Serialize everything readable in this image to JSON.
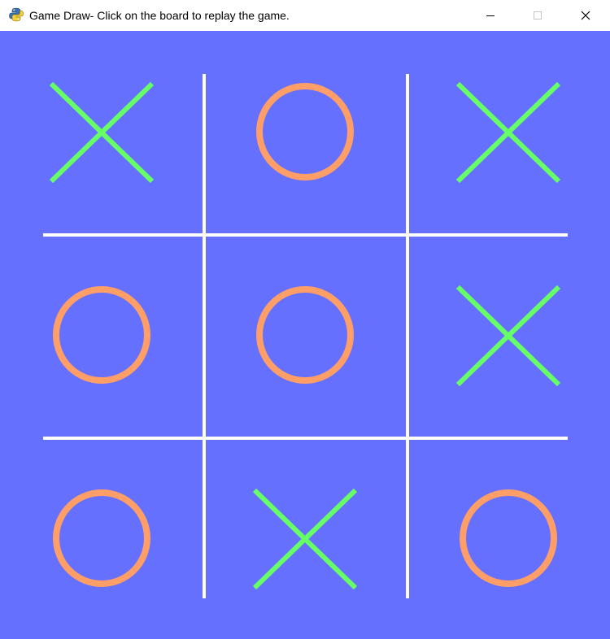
{
  "window": {
    "title": "Game Draw- Click on the board to replay the game.",
    "app_icon": "python-snake-icon"
  },
  "title_bar_buttons": [
    {
      "name": "minimize",
      "icon": "minimize-icon",
      "enabled": true
    },
    {
      "name": "maximize",
      "icon": "maximize-icon",
      "enabled": false
    },
    {
      "name": "close",
      "icon": "close-icon",
      "enabled": true
    }
  ],
  "board": {
    "background_color": "#6670FF",
    "line_color": "#FFFFFF",
    "x_color": "#66FF66",
    "o_color": "#FF9E66",
    "cells": [
      [
        "X",
        "O",
        "X"
      ],
      [
        "O",
        "O",
        "X"
      ],
      [
        "O",
        "X",
        "O"
      ]
    ]
  }
}
